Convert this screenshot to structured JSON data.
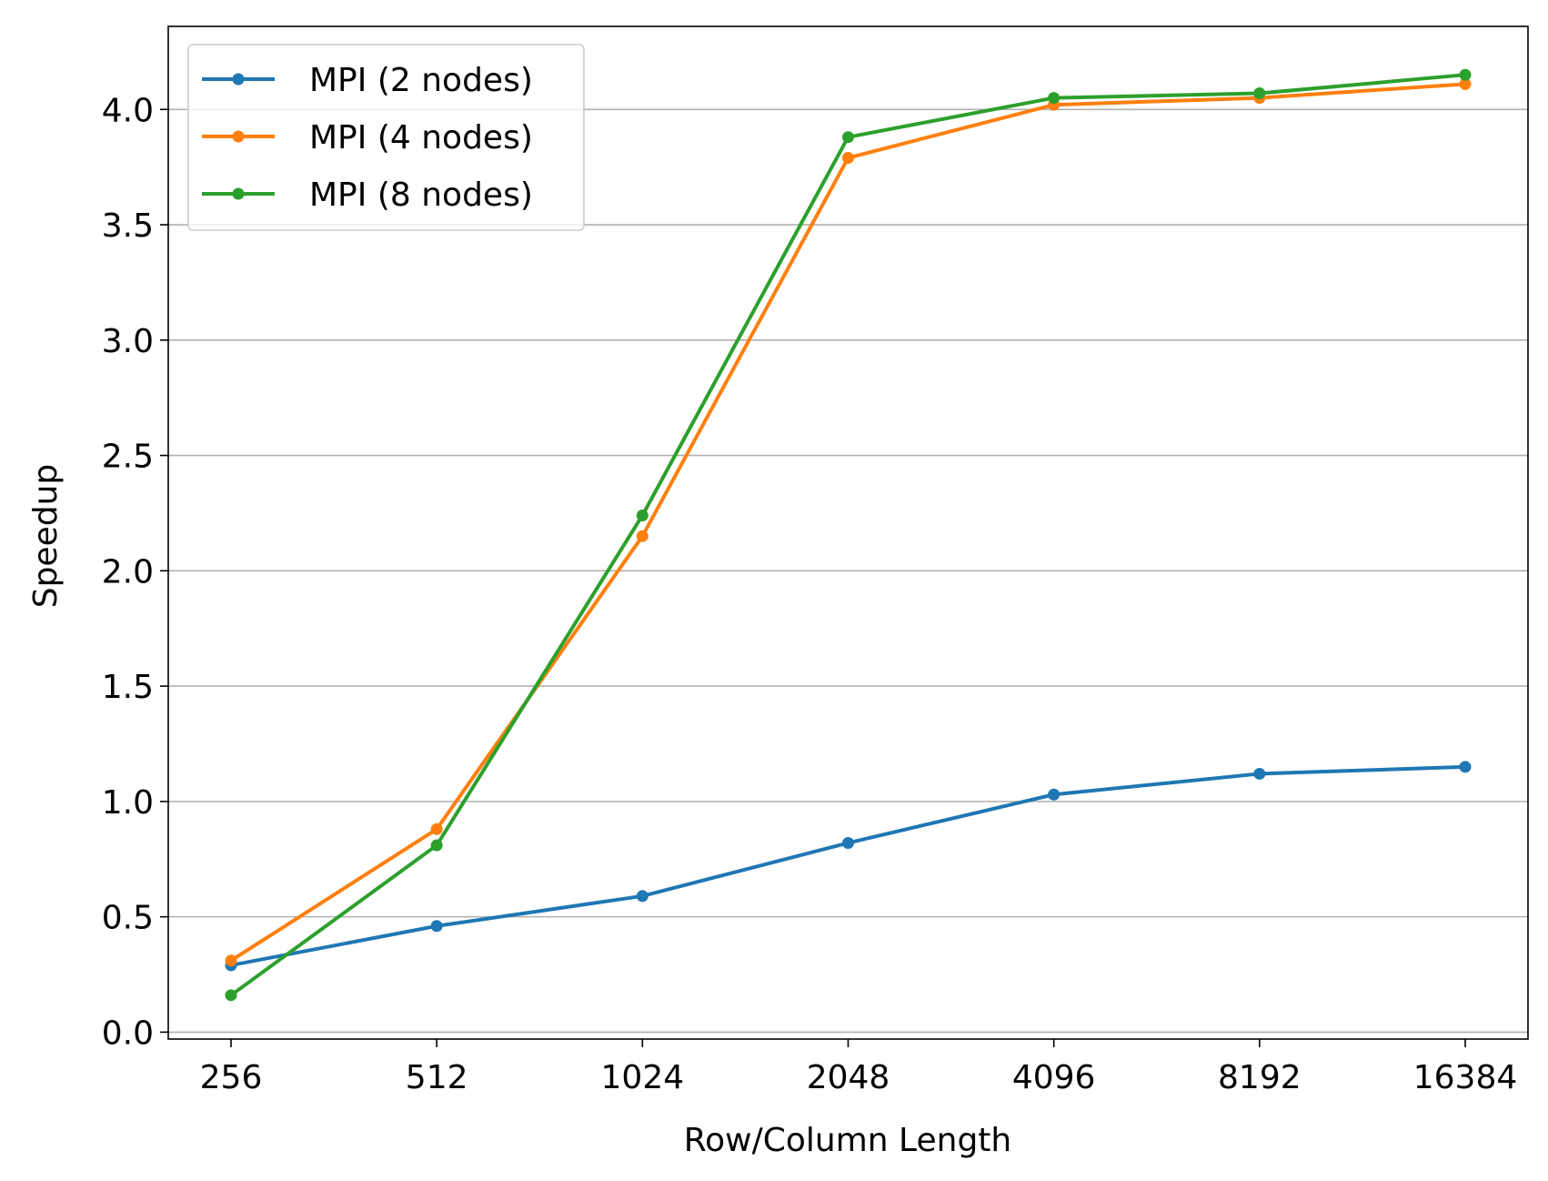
{
  "chart_data": {
    "type": "line",
    "title": "",
    "xlabel": "Row/Column Length",
    "ylabel": "Speedup",
    "categories": [
      "256",
      "512",
      "1024",
      "2048",
      "4096",
      "8192",
      "16384"
    ],
    "yticks": [
      "0.0",
      "0.5",
      "1.0",
      "1.5",
      "2.0",
      "2.5",
      "3.0",
      "3.5",
      "4.0"
    ],
    "ylim": [
      -0.03,
      4.36
    ],
    "grid": "horizontal",
    "legend_position": "top-left",
    "series": [
      {
        "name": "MPI (2 nodes)",
        "color": "#1f77b4",
        "values": [
          0.29,
          0.46,
          0.59,
          0.82,
          1.03,
          1.12,
          1.15
        ]
      },
      {
        "name": "MPI (4 nodes)",
        "color": "#ff7f0e",
        "values": [
          0.31,
          0.88,
          2.15,
          3.79,
          4.02,
          4.05,
          4.11
        ]
      },
      {
        "name": "MPI (8 nodes)",
        "color": "#2ca02c",
        "values": [
          0.16,
          0.81,
          2.24,
          3.88,
          4.05,
          4.07,
          4.15
        ]
      }
    ]
  }
}
